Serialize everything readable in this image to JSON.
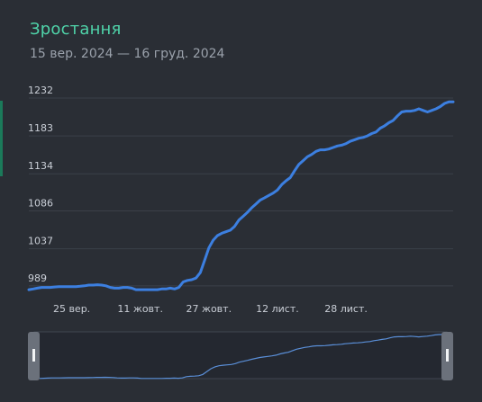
{
  "header": {
    "title": "Зростання",
    "subtitle": "15 вер. 2024 — 16 груд. 2024"
  },
  "colors": {
    "line": "#3c7fe0",
    "title": "#4fd3a9",
    "navigator_line": "#5a8fd8"
  },
  "chart_data": {
    "type": "line",
    "title": "Зростання",
    "subtitle": "15 вер. 2024 — 16 груд. 2024",
    "y_ticks": [
      "1232",
      "1183",
      "1134",
      "1086",
      "1037",
      "989"
    ],
    "y_tick_values": [
      1232,
      1183,
      1134,
      1086,
      1037,
      989
    ],
    "ylim": [
      983,
      1232
    ],
    "x_ticks": [
      "25 вер.",
      "11 жовт.",
      "27 жовт.",
      "12 лист.",
      "28 лист."
    ],
    "x_tick_days": [
      10,
      26,
      42,
      58,
      74
    ],
    "xlim_days": [
      0,
      91
    ],
    "grid": true,
    "legend": "none",
    "series": [
      {
        "values": [
          [
            0,
            984
          ],
          [
            1,
            985
          ],
          [
            2,
            986
          ],
          [
            3,
            987
          ],
          [
            4,
            987
          ],
          [
            5,
            987
          ],
          [
            6,
            987.5
          ],
          [
            7,
            988
          ],
          [
            8,
            988
          ],
          [
            9,
            988
          ],
          [
            10,
            988
          ],
          [
            11,
            988
          ],
          [
            12,
            988.5
          ],
          [
            13,
            989
          ],
          [
            14,
            990
          ],
          [
            15,
            990
          ],
          [
            16,
            990.5
          ],
          [
            17,
            990
          ],
          [
            18,
            989
          ],
          [
            19,
            987
          ],
          [
            20,
            986
          ],
          [
            21,
            986
          ],
          [
            22,
            987
          ],
          [
            23,
            987
          ],
          [
            24,
            986
          ],
          [
            25,
            984
          ],
          [
            26,
            984
          ],
          [
            27,
            984
          ],
          [
            28,
            984
          ],
          [
            29,
            984
          ],
          [
            30,
            984
          ],
          [
            31,
            985
          ],
          [
            32,
            985
          ],
          [
            33,
            986
          ],
          [
            34,
            985
          ],
          [
            35,
            987
          ],
          [
            36,
            994
          ],
          [
            37,
            996
          ],
          [
            38,
            997
          ],
          [
            39,
            999
          ],
          [
            40,
            1006
          ],
          [
            41,
            1022
          ],
          [
            42,
            1038
          ],
          [
            43,
            1048
          ],
          [
            44,
            1054
          ],
          [
            45,
            1057
          ],
          [
            46,
            1059
          ],
          [
            47,
            1061
          ],
          [
            48,
            1066
          ],
          [
            49,
            1074
          ],
          [
            50,
            1079
          ],
          [
            51,
            1084
          ],
          [
            52,
            1090
          ],
          [
            53,
            1095
          ],
          [
            54,
            1100
          ],
          [
            55,
            1103
          ],
          [
            56,
            1106
          ],
          [
            57,
            1109
          ],
          [
            58,
            1113
          ],
          [
            59,
            1120
          ],
          [
            60,
            1125
          ],
          [
            61,
            1129
          ],
          [
            62,
            1138
          ],
          [
            63,
            1146
          ],
          [
            64,
            1151
          ],
          [
            65,
            1156
          ],
          [
            66,
            1159
          ],
          [
            67,
            1163
          ],
          [
            68,
            1165
          ],
          [
            69,
            1165
          ],
          [
            70,
            1166
          ],
          [
            71,
            1168
          ],
          [
            72,
            1170
          ],
          [
            73,
            1171
          ],
          [
            74,
            1173
          ],
          [
            75,
            1176
          ],
          [
            76,
            1178
          ],
          [
            77,
            1180
          ],
          [
            78,
            1181
          ],
          [
            79,
            1183
          ],
          [
            80,
            1186
          ],
          [
            81,
            1188
          ],
          [
            82,
            1193
          ],
          [
            83,
            1196
          ],
          [
            84,
            1200
          ],
          [
            85,
            1203
          ],
          [
            86,
            1209
          ],
          [
            87,
            1214
          ],
          [
            88,
            1215
          ],
          [
            89,
            1215
          ],
          [
            90,
            1216
          ],
          [
            91,
            1218
          ],
          [
            92,
            1216
          ],
          [
            93,
            1214
          ],
          [
            94,
            1216
          ],
          [
            95,
            1218
          ],
          [
            96,
            1221
          ],
          [
            97,
            1225
          ],
          [
            98,
            1227
          ],
          [
            99,
            1227
          ]
        ]
      }
    ],
    "navigator": {
      "range": "full"
    }
  }
}
